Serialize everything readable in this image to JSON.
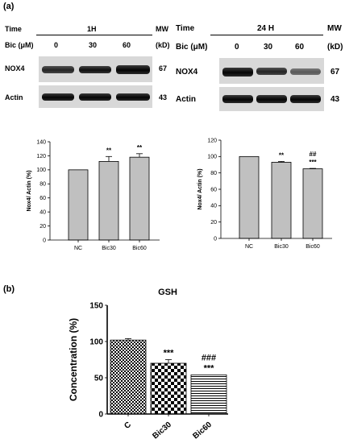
{
  "panel_a_label": "(a)",
  "panel_b_label": "(b)",
  "blot_left": {
    "time_label": "Time",
    "time_value": "1H",
    "mw_label": "MW",
    "bic_label": "Bic (μM)",
    "kd_label": "(kD)",
    "doses": [
      "0",
      "30",
      "60"
    ],
    "rows": [
      {
        "protein": "NOX4",
        "mw": "67",
        "intensity": [
          0.85,
          0.95,
          1.0
        ]
      },
      {
        "protein": "Actin",
        "mw": "43",
        "intensity": [
          1.0,
          1.0,
          1.0
        ]
      }
    ]
  },
  "blot_right": {
    "time_label": "Time",
    "time_value": "24 H",
    "mw_label": "MW",
    "bic_label": "Bic (μM)",
    "kd_label": "(kD)",
    "doses": [
      "0",
      "30",
      "60"
    ],
    "rows": [
      {
        "protein": "NOX4",
        "mw": "67",
        "intensity": [
          1.0,
          0.85,
          0.6
        ]
      },
      {
        "protein": "Actin",
        "mw": "43",
        "intensity": [
          1.0,
          1.0,
          1.0
        ]
      }
    ]
  },
  "chart_data": [
    {
      "type": "bar",
      "categories": [
        "NC",
        "Bic30",
        "Bic60"
      ],
      "values": [
        100,
        112,
        118
      ],
      "errors": [
        0,
        7,
        5
      ],
      "annotations": [
        [],
        [
          "**"
        ],
        [
          "**"
        ]
      ],
      "ylabel": "Nox4/ Actin (%)",
      "ylim": [
        0,
        140
      ],
      "yticks": [
        0,
        20,
        40,
        60,
        80,
        100,
        120,
        140
      ],
      "fill": "#c0c0c0"
    },
    {
      "type": "bar",
      "categories": [
        "NC",
        "Bic30",
        "Bic60"
      ],
      "values": [
        100,
        93,
        85
      ],
      "errors": [
        0,
        1,
        0.5
      ],
      "annotations": [
        [],
        [
          "**"
        ],
        [
          "##",
          "***"
        ]
      ],
      "ylabel": "Nox4/ Actin (%)",
      "ylim": [
        0,
        120
      ],
      "yticks": [
        0,
        20,
        40,
        60,
        80,
        100,
        120
      ],
      "fill": "#c0c0c0"
    },
    {
      "type": "bar",
      "title": "GSH",
      "categories": [
        "C",
        "Bic30",
        "Bic60"
      ],
      "values": [
        102,
        70,
        54
      ],
      "errors": [
        2,
        5,
        0
      ],
      "annotations": [
        [],
        [
          "***"
        ],
        [
          "###",
          "***"
        ]
      ],
      "ylabel": "Concentration (%)",
      "ylim": [
        0,
        150
      ],
      "yticks": [
        0,
        50,
        100,
        150
      ],
      "patterns": [
        "checker-fine",
        "checker",
        "hlines"
      ]
    }
  ]
}
